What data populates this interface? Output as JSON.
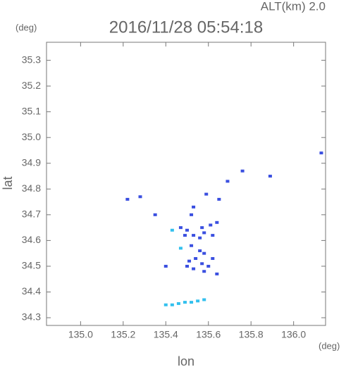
{
  "chart_data": {
    "type": "scatter",
    "title": "2016/11/28 05:54:18",
    "subtitle": "ALT(km) 2.0",
    "y_unit": "(deg)",
    "x_unit": "(deg)",
    "x_label": "lon",
    "y_label": "lat",
    "xlim": [
      134.84,
      136.15
    ],
    "ylim": [
      34.27,
      35.37
    ],
    "xticks": [
      {
        "value": 135.0,
        "label": "135.0"
      },
      135.2,
      135.4,
      135.6,
      135.8,
      {
        "value": 136.0,
        "label": "136.0"
      }
    ],
    "yticks": [
      34.3,
      34.4,
      34.5,
      34.6,
      34.7,
      34.8,
      34.9,
      {
        "value": 35.0,
        "label": "35.0"
      },
      35.1,
      35.2,
      35.3
    ],
    "series": [
      {
        "color": "#3a4fe0",
        "x": [
          136.13,
          135.89,
          135.76,
          135.69,
          135.59,
          135.53,
          135.65,
          135.28,
          135.22,
          135.35,
          135.52,
          135.47,
          135.5,
          135.53,
          135.57,
          135.58,
          135.61,
          135.64,
          135.49,
          135.56,
          135.62,
          135.52,
          135.56,
          135.54,
          135.58,
          135.51,
          135.57,
          135.53,
          135.6,
          135.58,
          135.5,
          135.62,
          135.64,
          135.4
        ],
        "y": [
          34.94,
          34.85,
          34.87,
          34.83,
          34.78,
          34.73,
          34.76,
          34.77,
          34.76,
          34.7,
          34.7,
          34.65,
          34.64,
          34.62,
          34.65,
          34.63,
          34.66,
          34.67,
          34.62,
          34.61,
          34.62,
          34.58,
          34.56,
          34.53,
          34.55,
          34.52,
          34.51,
          34.49,
          34.5,
          34.48,
          34.5,
          34.53,
          34.47,
          34.5
        ]
      },
      {
        "color": "#33c0ee",
        "x": [
          135.4,
          135.43,
          135.46,
          135.49,
          135.52,
          135.55,
          135.58,
          135.43,
          135.47
        ],
        "y": [
          34.35,
          34.35,
          34.355,
          34.36,
          34.36,
          34.365,
          34.37,
          34.64,
          34.57
        ]
      }
    ]
  }
}
